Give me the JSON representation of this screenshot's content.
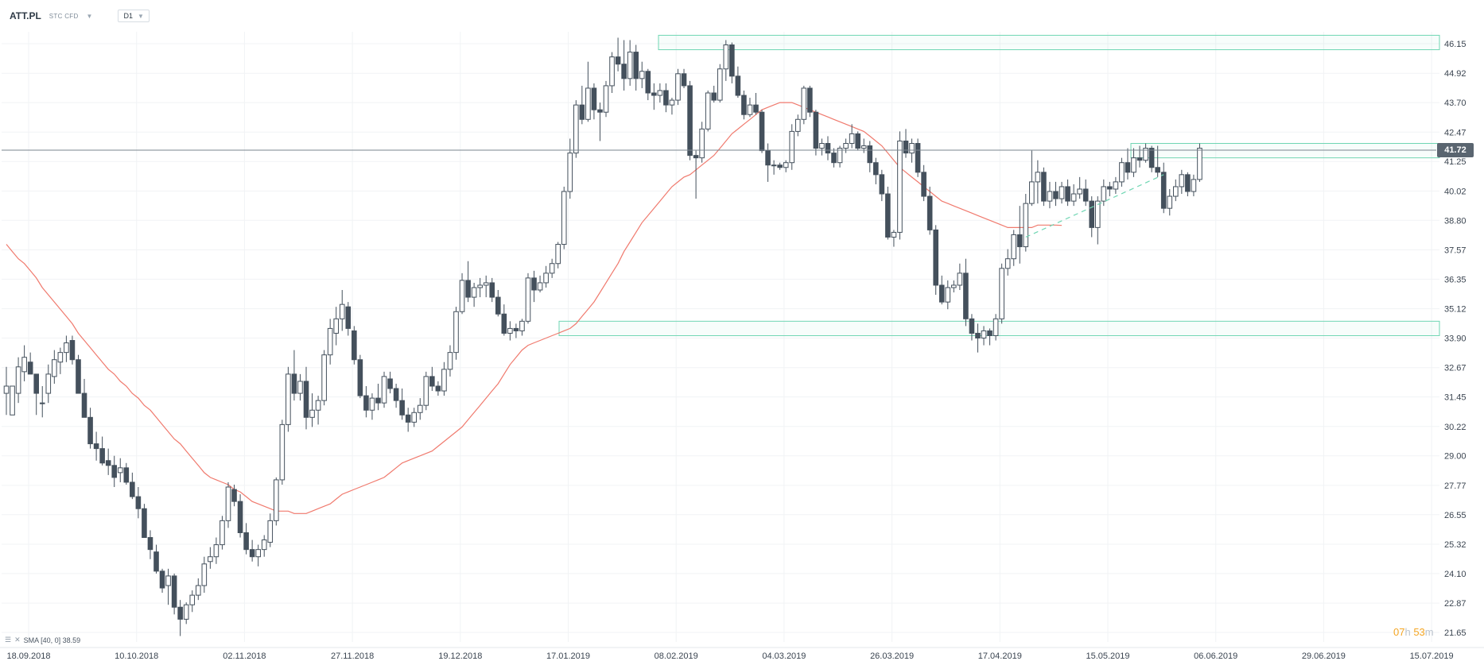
{
  "header": {
    "symbol": "ATT.PL",
    "instrument_type": "STC CFD",
    "timeframe": "D1"
  },
  "indicator_legend": {
    "label": "SMA [40, 0] 38.59"
  },
  "countdown": {
    "hours": "07",
    "hours_unit": "h",
    "minutes": "53",
    "minutes_unit": "m"
  },
  "current_price": "41.72",
  "colors": {
    "bull_body": "#ffffff",
    "bear_body": "#44505c",
    "candle_outline": "#44505c",
    "sma": "#f07a6e",
    "zone": "#6fd6b3",
    "price_line": "#7a848e",
    "price_tag": "#5a6570",
    "countdown": "#f5a623"
  },
  "chart_data": {
    "type": "candlestick",
    "x_tick_labels": [
      "18.09.2018",
      "10.10.2018",
      "02.11.2018",
      "27.11.2018",
      "19.12.2018",
      "17.01.2019",
      "08.02.2019",
      "04.03.2019",
      "26.03.2019",
      "17.04.2019",
      "15.05.2019",
      "06.06.2019",
      "29.06.2019",
      "15.07.2019"
    ],
    "y_tick_labels": [
      "46.15",
      "44.92",
      "43.70",
      "42.47",
      "41.25",
      "40.02",
      "38.80",
      "37.57",
      "36.35",
      "35.12",
      "33.90",
      "32.67",
      "31.45",
      "30.22",
      "29.00",
      "27.77",
      "26.55",
      "25.32",
      "24.10",
      "22.87",
      "21.65"
    ],
    "ylim": [
      21.65,
      46.15
    ],
    "grid": true,
    "current_price": 41.72,
    "candles": [
      [
        31.6,
        32.7,
        30.7,
        31.9
      ],
      [
        30.7,
        31.9,
        30.7,
        31.9
      ],
      [
        31.6,
        33.1,
        31.2,
        32.7
      ],
      [
        32.5,
        33.6,
        32.1,
        33.1
      ],
      [
        32.9,
        33.3,
        32.4,
        32.4
      ],
      [
        32.4,
        32.4,
        30.7,
        31.6
      ],
      [
        31.2,
        31.9,
        30.6,
        31.2
      ],
      [
        31.6,
        32.8,
        31.2,
        32.4
      ],
      [
        32.3,
        33.4,
        32.0,
        33.0
      ],
      [
        32.9,
        33.5,
        32.4,
        33.3
      ],
      [
        33.3,
        34.0,
        32.9,
        33.7
      ],
      [
        33.8,
        34.0,
        32.8,
        33.0
      ],
      [
        33.0,
        33.2,
        31.6,
        31.6
      ],
      [
        31.6,
        32.2,
        30.6,
        30.6
      ],
      [
        30.6,
        31.0,
        29.3,
        29.5
      ],
      [
        29.5,
        30.0,
        28.8,
        29.3
      ],
      [
        29.3,
        29.8,
        28.6,
        28.7
      ],
      [
        28.8,
        29.3,
        28.2,
        28.6
      ],
      [
        28.6,
        29.0,
        27.7,
        28.1
      ],
      [
        28.3,
        28.9,
        27.9,
        28.5
      ],
      [
        28.5,
        28.7,
        27.8,
        27.9
      ],
      [
        27.9,
        28.3,
        27.2,
        27.3
      ],
      [
        27.3,
        27.7,
        26.4,
        26.8
      ],
      [
        26.8,
        27.0,
        25.6,
        25.6
      ],
      [
        25.6,
        25.9,
        24.7,
        25.1
      ],
      [
        25.0,
        25.3,
        24.1,
        24.2
      ],
      [
        24.2,
        24.3,
        23.3,
        23.5
      ],
      [
        23.6,
        24.3,
        22.8,
        24.0
      ],
      [
        24.0,
        24.1,
        22.4,
        22.7
      ],
      [
        22.7,
        23.0,
        21.5,
        22.2
      ],
      [
        22.2,
        22.9,
        22.0,
        22.8
      ],
      [
        22.8,
        23.4,
        22.5,
        23.2
      ],
      [
        23.2,
        23.9,
        23.0,
        23.6
      ],
      [
        23.6,
        24.8,
        23.3,
        24.5
      ],
      [
        24.6,
        25.2,
        24.3,
        24.8
      ],
      [
        24.8,
        25.6,
        24.5,
        25.3
      ],
      [
        25.3,
        26.5,
        25.1,
        26.3
      ],
      [
        26.3,
        27.9,
        26.0,
        27.7
      ],
      [
        27.6,
        27.8,
        26.9,
        27.1
      ],
      [
        27.1,
        27.4,
        25.6,
        25.8
      ],
      [
        25.8,
        26.2,
        24.9,
        25.1
      ],
      [
        25.1,
        25.5,
        24.6,
        24.8
      ],
      [
        24.8,
        25.3,
        24.4,
        25.1
      ],
      [
        25.1,
        25.7,
        24.8,
        25.5
      ],
      [
        25.4,
        26.6,
        25.2,
        26.3
      ],
      [
        26.3,
        28.1,
        26.1,
        28.0
      ],
      [
        28.0,
        30.5,
        27.8,
        30.3
      ],
      [
        30.3,
        32.7,
        30.0,
        32.4
      ],
      [
        32.4,
        33.4,
        31.3,
        31.6
      ],
      [
        31.6,
        32.4,
        31.3,
        32.1
      ],
      [
        32.1,
        32.7,
        30.1,
        30.6
      ],
      [
        30.6,
        31.6,
        30.2,
        30.9
      ],
      [
        30.9,
        31.5,
        30.3,
        31.3
      ],
      [
        31.3,
        33.4,
        31.1,
        33.2
      ],
      [
        33.2,
        34.7,
        32.8,
        34.3
      ],
      [
        34.1,
        35.2,
        33.6,
        34.7
      ],
      [
        34.7,
        35.9,
        34.2,
        35.3
      ],
      [
        35.2,
        35.4,
        34.0,
        34.3
      ],
      [
        34.2,
        34.4,
        32.8,
        33.0
      ],
      [
        33.0,
        33.2,
        31.4,
        31.5
      ],
      [
        31.5,
        31.9,
        30.6,
        30.9
      ],
      [
        30.9,
        31.6,
        30.5,
        31.4
      ],
      [
        31.4,
        32.0,
        30.9,
        31.2
      ],
      [
        31.2,
        32.5,
        31.0,
        32.3
      ],
      [
        32.2,
        32.5,
        31.6,
        31.8
      ],
      [
        31.8,
        32.0,
        31.0,
        31.3
      ],
      [
        31.3,
        31.8,
        30.5,
        30.7
      ],
      [
        30.7,
        31.0,
        30.0,
        30.4
      ],
      [
        30.4,
        31.0,
        30.2,
        30.8
      ],
      [
        30.8,
        31.4,
        30.5,
        31.1
      ],
      [
        31.1,
        32.5,
        30.9,
        32.3
      ],
      [
        32.3,
        32.7,
        31.7,
        31.9
      ],
      [
        31.9,
        32.1,
        31.5,
        31.7
      ],
      [
        31.7,
        32.9,
        31.5,
        32.6
      ],
      [
        32.6,
        33.6,
        32.3,
        33.3
      ],
      [
        33.3,
        35.2,
        33.0,
        35.0
      ],
      [
        35.0,
        36.6,
        34.9,
        36.3
      ],
      [
        36.3,
        37.1,
        35.4,
        35.6
      ],
      [
        35.6,
        36.2,
        35.2,
        36.0
      ],
      [
        36.0,
        36.4,
        35.6,
        36.1
      ],
      [
        36.1,
        36.5,
        35.6,
        36.2
      ],
      [
        36.2,
        36.4,
        35.4,
        35.6
      ],
      [
        35.6,
        35.9,
        34.8,
        34.9
      ],
      [
        34.9,
        35.3,
        34.0,
        34.1
      ],
      [
        34.1,
        34.6,
        33.8,
        34.3
      ],
      [
        34.3,
        34.5,
        33.9,
        34.2
      ],
      [
        34.2,
        34.7,
        34.0,
        34.6
      ],
      [
        34.6,
        36.6,
        34.5,
        36.4
      ],
      [
        36.4,
        36.7,
        35.4,
        35.9
      ],
      [
        35.9,
        36.5,
        35.8,
        36.2
      ],
      [
        36.2,
        36.9,
        36.0,
        36.6
      ],
      [
        36.6,
        37.2,
        36.4,
        37.0
      ],
      [
        37.0,
        37.9,
        36.8,
        37.8
      ],
      [
        37.8,
        40.2,
        37.6,
        40.0
      ],
      [
        40.0,
        42.2,
        39.7,
        41.6
      ],
      [
        41.6,
        43.8,
        41.4,
        43.6
      ],
      [
        43.6,
        44.4,
        42.8,
        43.0
      ],
      [
        43.0,
        45.4,
        42.9,
        44.3
      ],
      [
        44.3,
        44.5,
        43.0,
        43.4
      ],
      [
        43.4,
        43.7,
        42.1,
        43.3
      ],
      [
        43.3,
        44.6,
        43.1,
        44.4
      ],
      [
        44.4,
        45.8,
        44.1,
        45.6
      ],
      [
        45.6,
        46.4,
        45.0,
        45.3
      ],
      [
        45.3,
        46.3,
        44.2,
        44.7
      ],
      [
        44.7,
        46.3,
        44.4,
        45.8
      ],
      [
        45.8,
        46.1,
        44.2,
        44.7
      ],
      [
        44.7,
        45.4,
        44.3,
        45.0
      ],
      [
        45.0,
        45.1,
        43.8,
        44.1
      ],
      [
        44.1,
        44.5,
        43.4,
        44.0
      ],
      [
        44.0,
        44.5,
        43.7,
        44.2
      ],
      [
        44.2,
        44.5,
        43.3,
        43.6
      ],
      [
        43.6,
        43.9,
        43.2,
        43.8
      ],
      [
        43.8,
        45.1,
        43.6,
        44.9
      ],
      [
        44.9,
        45.1,
        44.3,
        44.4
      ],
      [
        44.4,
        44.6,
        41.3,
        41.5
      ],
      [
        41.5,
        41.7,
        39.7,
        41.4
      ],
      [
        41.4,
        42.9,
        41.2,
        42.6
      ],
      [
        42.6,
        44.2,
        42.5,
        44.1
      ],
      [
        44.1,
        44.4,
        43.7,
        43.8
      ],
      [
        43.8,
        45.3,
        43.7,
        45.1
      ],
      [
        45.1,
        46.3,
        44.6,
        46.1
      ],
      [
        46.1,
        46.2,
        44.5,
        44.8
      ],
      [
        44.8,
        45.2,
        43.9,
        44.0
      ],
      [
        44.0,
        44.2,
        43.0,
        43.2
      ],
      [
        43.2,
        43.9,
        43.1,
        43.6
      ],
      [
        43.6,
        44.1,
        43.2,
        43.3
      ],
      [
        43.3,
        43.4,
        41.6,
        41.7
      ],
      [
        41.7,
        42.0,
        40.4,
        41.1
      ],
      [
        41.1,
        41.3,
        40.7,
        41.1
      ],
      [
        41.1,
        41.2,
        40.9,
        41.0
      ],
      [
        41.0,
        41.3,
        40.8,
        41.2
      ],
      [
        41.2,
        42.8,
        40.9,
        42.5
      ],
      [
        42.5,
        43.2,
        42.3,
        43.0
      ],
      [
        43.0,
        44.4,
        42.8,
        44.3
      ],
      [
        44.3,
        44.4,
        43.1,
        43.3
      ],
      [
        43.3,
        43.4,
        41.5,
        41.8
      ],
      [
        41.8,
        42.2,
        41.5,
        42.0
      ],
      [
        42.0,
        42.3,
        41.3,
        41.6
      ],
      [
        41.6,
        41.8,
        41.0,
        41.2
      ],
      [
        41.2,
        41.9,
        41.0,
        41.8
      ],
      [
        41.8,
        42.2,
        41.6,
        42.0
      ],
      [
        42.0,
        42.8,
        41.8,
        42.4
      ],
      [
        42.4,
        42.5,
        41.7,
        41.8
      ],
      [
        41.8,
        42.2,
        41.6,
        41.9
      ],
      [
        41.9,
        42.1,
        40.8,
        41.2
      ],
      [
        41.2,
        41.4,
        40.3,
        40.7
      ],
      [
        40.7,
        40.9,
        39.6,
        39.9
      ],
      [
        39.9,
        40.2,
        38.0,
        38.1
      ],
      [
        38.1,
        38.4,
        37.7,
        38.3
      ],
      [
        38.3,
        42.5,
        38.0,
        42.1
      ],
      [
        42.1,
        42.6,
        41.4,
        41.6
      ],
      [
        41.6,
        42.2,
        41.2,
        42.0
      ],
      [
        42.0,
        42.2,
        40.6,
        40.8
      ],
      [
        40.8,
        41.1,
        39.6,
        39.8
      ],
      [
        39.8,
        40.2,
        38.2,
        38.4
      ],
      [
        38.4,
        38.6,
        35.7,
        36.1
      ],
      [
        36.1,
        36.5,
        35.3,
        35.4
      ],
      [
        35.4,
        36.3,
        35.1,
        36.0
      ],
      [
        36.0,
        36.3,
        35.8,
        36.1
      ],
      [
        36.1,
        37.0,
        35.9,
        36.6
      ],
      [
        36.6,
        37.2,
        34.4,
        34.7
      ],
      [
        34.7,
        34.9,
        33.8,
        34.1
      ],
      [
        34.1,
        34.5,
        33.3,
        33.9
      ],
      [
        33.9,
        34.4,
        33.6,
        34.2
      ],
      [
        34.2,
        34.3,
        33.6,
        34.0
      ],
      [
        34.0,
        34.9,
        33.8,
        34.7
      ],
      [
        34.7,
        37.0,
        34.5,
        36.8
      ],
      [
        36.8,
        37.6,
        36.5,
        37.2
      ],
      [
        37.2,
        38.4,
        36.9,
        38.2
      ],
      [
        38.2,
        39.4,
        37.0,
        37.7
      ],
      [
        37.7,
        39.9,
        37.5,
        39.5
      ],
      [
        39.5,
        41.7,
        39.4,
        40.4
      ],
      [
        40.4,
        41.3,
        39.5,
        40.8
      ],
      [
        40.8,
        41.0,
        39.4,
        39.6
      ],
      [
        39.6,
        40.4,
        39.3,
        40.0
      ],
      [
        40.0,
        40.4,
        39.4,
        39.7
      ],
      [
        39.7,
        40.4,
        39.5,
        40.2
      ],
      [
        40.2,
        40.5,
        39.4,
        39.6
      ],
      [
        39.6,
        40.3,
        39.4,
        39.9
      ],
      [
        39.9,
        40.6,
        39.7,
        40.1
      ],
      [
        40.1,
        40.5,
        39.4,
        39.6
      ],
      [
        39.6,
        39.8,
        38.1,
        38.5
      ],
      [
        38.5,
        39.8,
        37.8,
        39.6
      ],
      [
        39.6,
        40.5,
        39.4,
        40.2
      ],
      [
        40.2,
        40.4,
        39.8,
        40.1
      ],
      [
        40.1,
        40.6,
        39.9,
        40.4
      ],
      [
        40.4,
        41.4,
        40.2,
        41.2
      ],
      [
        41.2,
        41.8,
        40.5,
        40.8
      ],
      [
        40.8,
        41.8,
        40.6,
        41.4
      ],
      [
        41.4,
        41.9,
        41.0,
        41.3
      ],
      [
        41.3,
        42.0,
        41.2,
        41.8
      ],
      [
        41.8,
        41.9,
        40.8,
        41.0
      ],
      [
        41.0,
        41.9,
        40.6,
        40.8
      ],
      [
        40.8,
        41.2,
        39.1,
        39.3
      ],
      [
        39.3,
        40.1,
        39.0,
        39.8
      ],
      [
        39.8,
        40.5,
        39.6,
        40.2
      ],
      [
        40.2,
        40.9,
        39.9,
        40.7
      ],
      [
        40.7,
        40.8,
        39.8,
        40.0
      ],
      [
        40.0,
        40.7,
        39.8,
        40.5
      ],
      [
        40.5,
        42.0,
        40.4,
        41.8
      ]
    ],
    "sma": {
      "label": "SMA [40, 0]",
      "value": 38.59,
      "values": [
        37.8,
        37.5,
        37.2,
        37.0,
        36.7,
        36.4,
        36.0,
        35.7,
        35.4,
        35.1,
        34.8,
        34.5,
        34.1,
        33.8,
        33.5,
        33.2,
        32.9,
        32.6,
        32.4,
        32.1,
        31.9,
        31.6,
        31.4,
        31.1,
        30.9,
        30.6,
        30.3,
        30.0,
        29.7,
        29.5,
        29.2,
        28.9,
        28.6,
        28.3,
        28.1,
        28.0,
        27.9,
        27.8,
        27.6,
        27.5,
        27.3,
        27.1,
        27.0,
        26.9,
        26.8,
        26.7,
        26.7,
        26.7,
        26.6,
        26.6,
        26.6,
        26.7,
        26.8,
        26.9,
        27.0,
        27.2,
        27.4,
        27.5,
        27.6,
        27.7,
        27.8,
        27.9,
        28.0,
        28.1,
        28.3,
        28.5,
        28.7,
        28.8,
        28.9,
        29.0,
        29.1,
        29.2,
        29.4,
        29.6,
        29.8,
        30.0,
        30.2,
        30.5,
        30.8,
        31.1,
        31.4,
        31.7,
        32.0,
        32.4,
        32.8,
        33.1,
        33.4,
        33.6,
        33.7,
        33.8,
        33.9,
        34.0,
        34.1,
        34.2,
        34.3,
        34.5,
        34.8,
        35.1,
        35.4,
        35.8,
        36.2,
        36.6,
        37.0,
        37.5,
        37.9,
        38.3,
        38.7,
        39.0,
        39.3,
        39.6,
        39.9,
        40.2,
        40.4,
        40.6,
        40.7,
        40.9,
        41.1,
        41.3,
        41.5,
        41.8,
        42.1,
        42.4,
        42.6,
        42.8,
        43.0,
        43.2,
        43.4,
        43.5,
        43.6,
        43.7,
        43.7,
        43.7,
        43.6,
        43.5,
        43.4,
        43.3,
        43.2,
        43.1,
        43.0,
        42.9,
        42.8,
        42.7,
        42.6,
        42.5,
        42.3,
        42.1,
        41.9,
        41.6,
        41.3,
        41.0,
        40.8,
        40.6,
        40.4,
        40.2,
        40.0,
        39.8,
        39.6,
        39.5,
        39.4,
        39.3,
        39.2,
        39.1,
        39.0,
        38.9,
        38.8,
        38.7,
        38.6,
        38.5,
        38.5,
        38.5,
        38.5,
        38.5,
        38.6,
        38.6,
        38.6,
        38.6,
        38.59
      ]
    },
    "zones": [
      [
        45.9,
        46.5
      ],
      [
        41.4,
        42.0
      ],
      [
        34.0,
        34.6
      ]
    ],
    "trendline": [
      [
        170,
        38.1
      ],
      [
        193,
        40.7
      ]
    ]
  }
}
